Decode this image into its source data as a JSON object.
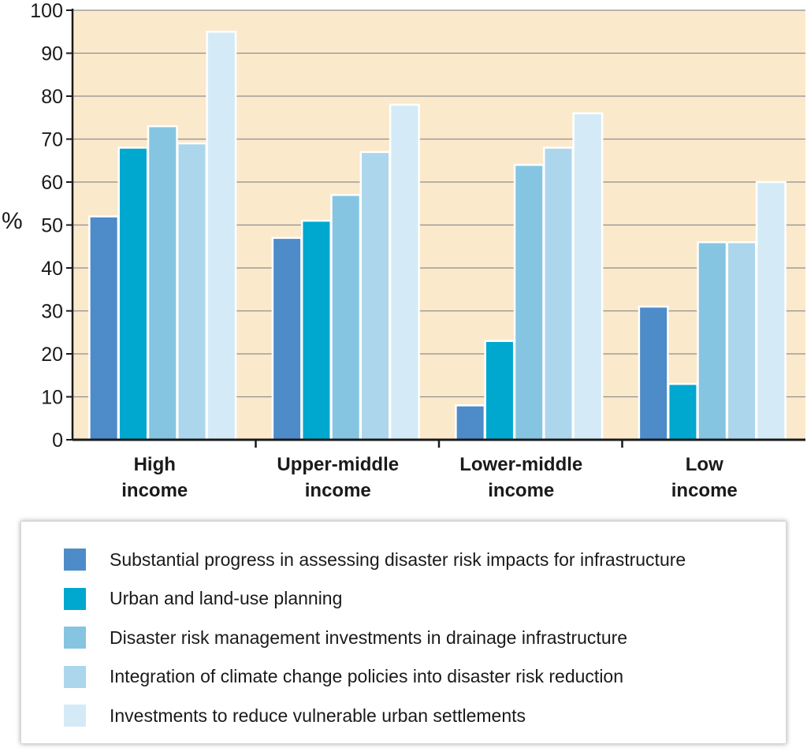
{
  "chart_data": {
    "type": "bar",
    "categories": [
      [
        "High",
        "income"
      ],
      [
        "Upper-middle",
        "income"
      ],
      [
        "Lower-middle",
        "income"
      ],
      [
        "Low",
        "income"
      ]
    ],
    "ylabel": "%",
    "ylim": [
      0,
      100
    ],
    "yticks": [
      0,
      10,
      20,
      30,
      40,
      50,
      60,
      70,
      80,
      90,
      100
    ],
    "grid": true,
    "legend_position": "bottom",
    "plot_background": "#fbe9cc",
    "series": [
      {
        "name": "Substantial progress in assessing disaster risk impacts for infrastructure",
        "color": "#4d8bc9",
        "values": [
          52,
          47,
          8,
          31
        ]
      },
      {
        "name": "Urban and land-use planning",
        "color": "#00a7cf",
        "values": [
          68,
          51,
          23,
          13
        ]
      },
      {
        "name": "Disaster risk management investments in drainage infrastructure",
        "color": "#86c5e1",
        "values": [
          73,
          57,
          64,
          46
        ]
      },
      {
        "name": "Integration of climate change policies into disaster risk reduction",
        "color": "#acd6ec",
        "values": [
          69,
          67,
          68,
          46
        ]
      },
      {
        "name": "Investments to reduce vulnerable urban settlements",
        "color": "#d4ebf7",
        "values": [
          95,
          78,
          76,
          60
        ]
      }
    ]
  }
}
